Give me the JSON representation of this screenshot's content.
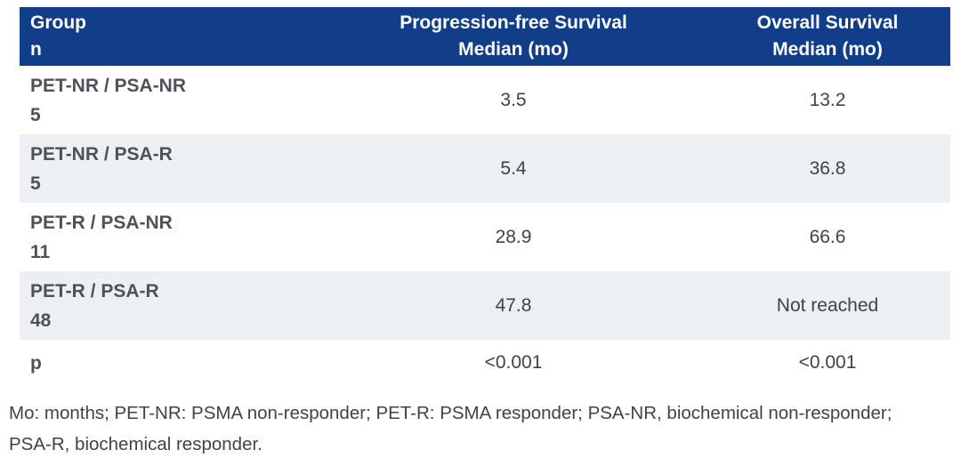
{
  "colors": {
    "header_bg": "#113d89",
    "header_text": "#ffffff",
    "alt_row_bg": "#eceff3",
    "label_text": "#4e5256",
    "value_text": "#3f4347"
  },
  "table": {
    "header": {
      "group": {
        "line1": "Group",
        "line2": "n"
      },
      "pfs": {
        "line1": "Progression-free Survival",
        "line2": "Median (mo)"
      },
      "os": {
        "line1": "Overall Survival",
        "line2": "Median (mo)"
      }
    },
    "rows": [
      {
        "group": "PET-NR / PSA-NR",
        "n": "5",
        "pfs": "3.5",
        "os": "13.2"
      },
      {
        "group": "PET-NR / PSA-R",
        "n": "5",
        "pfs": "5.4",
        "os": "36.8"
      },
      {
        "group": "PET-R / PSA-NR",
        "n": "11",
        "pfs": "28.9",
        "os": "66.6"
      },
      {
        "group": "PET-R / PSA-R",
        "n": "48",
        "pfs": "47.8",
        "os": "Not reached"
      },
      {
        "group": "p",
        "pfs": "<0.001",
        "os": "<0.001"
      }
    ]
  },
  "footnote": "Mo: months; PET-NR: PSMA non-responder; PET-R: PSMA responder; PSA-NR, biochemical non-responder; PSA-R, biochemical responder."
}
